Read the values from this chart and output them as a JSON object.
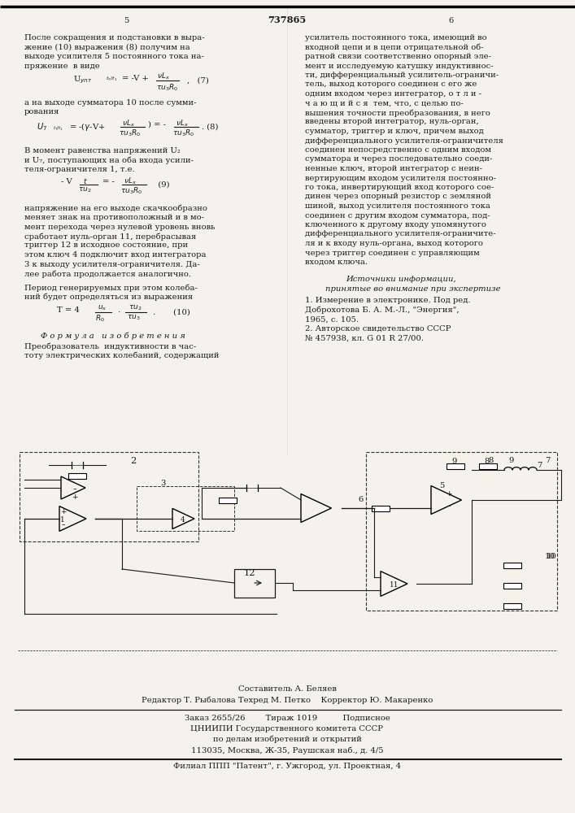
{
  "bg_color": "#f5f2ec",
  "text_color": "#1a1a1a",
  "title_patent": "737865",
  "page_left": "5",
  "page_right": "6",
  "top_line_color": "#000000",
  "col1_text": [
    "После сокращения и подстановки в выра-",
    "жение (10) выражения (8) получим на",
    "выходе усилителя 5 постоянного тока на-",
    "пряжение  в виде"
  ],
  "col1_formula7": "Uянт  t₇/t₁  = -V+   νLₓ     ,   (7)",
  "col1_formula7_line2": "                          τu₃R₀",
  "col1_text2": [
    "а на выходе сумматора 10 после сумми-",
    "рования"
  ],
  "col1_formula8": "U₇   = -(γ-V+  νLₓ  ) = -  νLₓ  . (8)",
  "col1_formula8_line2": "  t₇/t₁         τu₃R₀        τu₃R₀",
  "col1_text3": [
    "В момент равенства напряжений U₂",
    "и U₇, поступающих на оба входа усили-",
    "теля-ограничителя 1, т.е."
  ],
  "col1_formula9": "   - V    t    = -  νLₓ       (9)",
  "col1_formula9_line2": "        τu₂        τu₃R₀",
  "col1_text4": [
    "напряжение на его выходе скачкообразно",
    "меняет знак на противоположный и в мо-",
    "мент перехода через нулевой уровень вновь",
    "сработает нуль-орган 11, перебрасывая",
    "триггер 12 в исходное состояние, при",
    "этом ключ 4 подключит вход интегратора",
    "3 к выходу усилителя-ограничителя. Да-",
    "лее работа продолжается аналогично."
  ],
  "col1_text5": [
    "Период генерируемых при этом колеба-",
    "ний будет определяться из выражения"
  ],
  "col1_formula10": "T = 4 ух  . τu₂  .     (10)",
  "col1_formula10_line2": "      R₀    τu₃",
  "formula_izobr": "Ф о р м у л а   и з о б р е т е н и я",
  "formula_text": [
    "Преобразователь  индуктивности в час-",
    "тоту электрических колебаний, содержащий"
  ],
  "col2_text": [
    "усилитель постоянного тока, имеющий во",
    "входной цепи и в цепи отрицательной об-",
    "ратной связи соответственно опорный эле-",
    "мент и исследуемую катушку индуктивнос-",
    "ти, дифференциальный усилитель-ограничи-",
    "тель, выход которого соединен с его же",
    "одним входом через интегратор, о т л и -",
    "ч а ю щ и й с я  тем, что, с целью по-",
    "вышения точности преобразования, в него",
    "введены второй интегратор, нуль-орган,",
    "сумматор, триггер и ключ, причем выход",
    "дифференциального усилителя-ограничителя",
    "соединен непосредственно с одним входом",
    "сумматора и через последовательно соеди-",
    "ненные ключ, второй интегратор с неин-",
    "вертирующим входом усилителя постоянно-",
    "го тока, инвертирующий вход которого сое-",
    "динен через опорный резистор с земляной",
    "шиной, выход усилителя постоянного тока",
    "соединен с другим входом сумматора, под-",
    "ключенного к другому входу упомянутого",
    "дифференциального усилителя-ограничите-",
    "ля и к входу нуль-органа, выход которого",
    "через триггер соединен с управляющим",
    "входом ключа."
  ],
  "sources_header": "Источники информации,",
  "sources_subheader": "принятые во внимание при экспертизе",
  "source1": "1. Измерение в электронике. Под ред.",
  "source1b": "Доброхотова Б. А. М.-Л., \"Энергия\",",
  "source1c": "1965, с. 105.",
  "source2": "2. Авторское свидетельство СССР",
  "source2b": "№ 457938, кл. G 01 R 27/00.",
  "composer": "Составитель А. Беляев",
  "editor_line": "Редактор Т. Рыбалова Техред М. Петко    Корректор Ю. Макаренко",
  "order_line": "Заказ 2655/26        Тираж 1019          Подписное",
  "org_line1": "ЦНИИПИ Государственного комитета СССР",
  "org_line2": "по делам изобретений и открытий",
  "org_line3": "113035, Москва, Ж-35, Раушская наб., д. 4/5",
  "branch_line": "Филиал ППП \"Патент\", г. Ужгород, ул. Проектная, 4"
}
